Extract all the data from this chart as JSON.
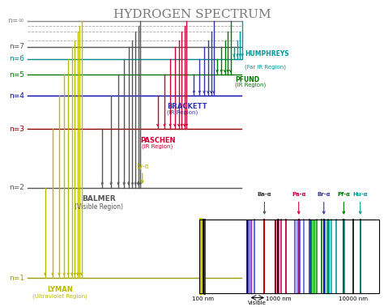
{
  "title": "HYDROGEN SPECTRUM",
  "title_fontsize": 11,
  "bg_color": "#ffffff",
  "energy_levels": {
    "n1": 0.08,
    "n2": 0.38,
    "n3": 0.575,
    "n4": 0.685,
    "n5": 0.755,
    "n6": 0.808,
    "n7": 0.848,
    "ninf": 0.935
  },
  "level_labels": {
    "n1": "n=1",
    "n2": "n=2",
    "n3": "n=3",
    "n4": "n=4",
    "n5": "n=5",
    "n6": "n=6",
    "n7": "n=7",
    "ninf": "n=∞"
  },
  "level_colors": {
    "n1": "#999900",
    "n2": "#555555",
    "n3": "#880000",
    "n4": "#0000aa",
    "n5": "#007700",
    "n6": "#008888",
    "n7": "#555555",
    "ninf": "#888888"
  },
  "lyman_color": "#bbbb00",
  "balmer_color": "#555555",
  "paschen_color": "#cc0033",
  "brackett_color": "#3333aa",
  "pfund_color": "#007700",
  "humphreys_color": "#009999",
  "series_labels": {
    "lyman": [
      "LYMAN",
      "(Ultraviolet Region)"
    ],
    "balmer": [
      "BALMER",
      "(Visible Region)"
    ],
    "paschen": [
      "PASCHEN",
      "(IR Region)"
    ],
    "brackett": [
      "BRACKETT",
      "(IR Region)"
    ],
    "pfund": [
      "PFUND",
      "(IR Region)"
    ],
    "humphreys": [
      "HUMPHREYS",
      "(Far IR Region)"
    ]
  },
  "bottom_series": {
    "Ba_a_label": "Ba-α",
    "Pa_a_label": "Pa-α",
    "Br_a_label": "Br-α",
    "Pf_a_label": "Pf-α",
    "Hu_a_label": "Hu-α",
    "visible_label": "Visible",
    "nm100": "100 nm",
    "nm1000": "1000 nm",
    "nm10000": "10000 nm"
  }
}
